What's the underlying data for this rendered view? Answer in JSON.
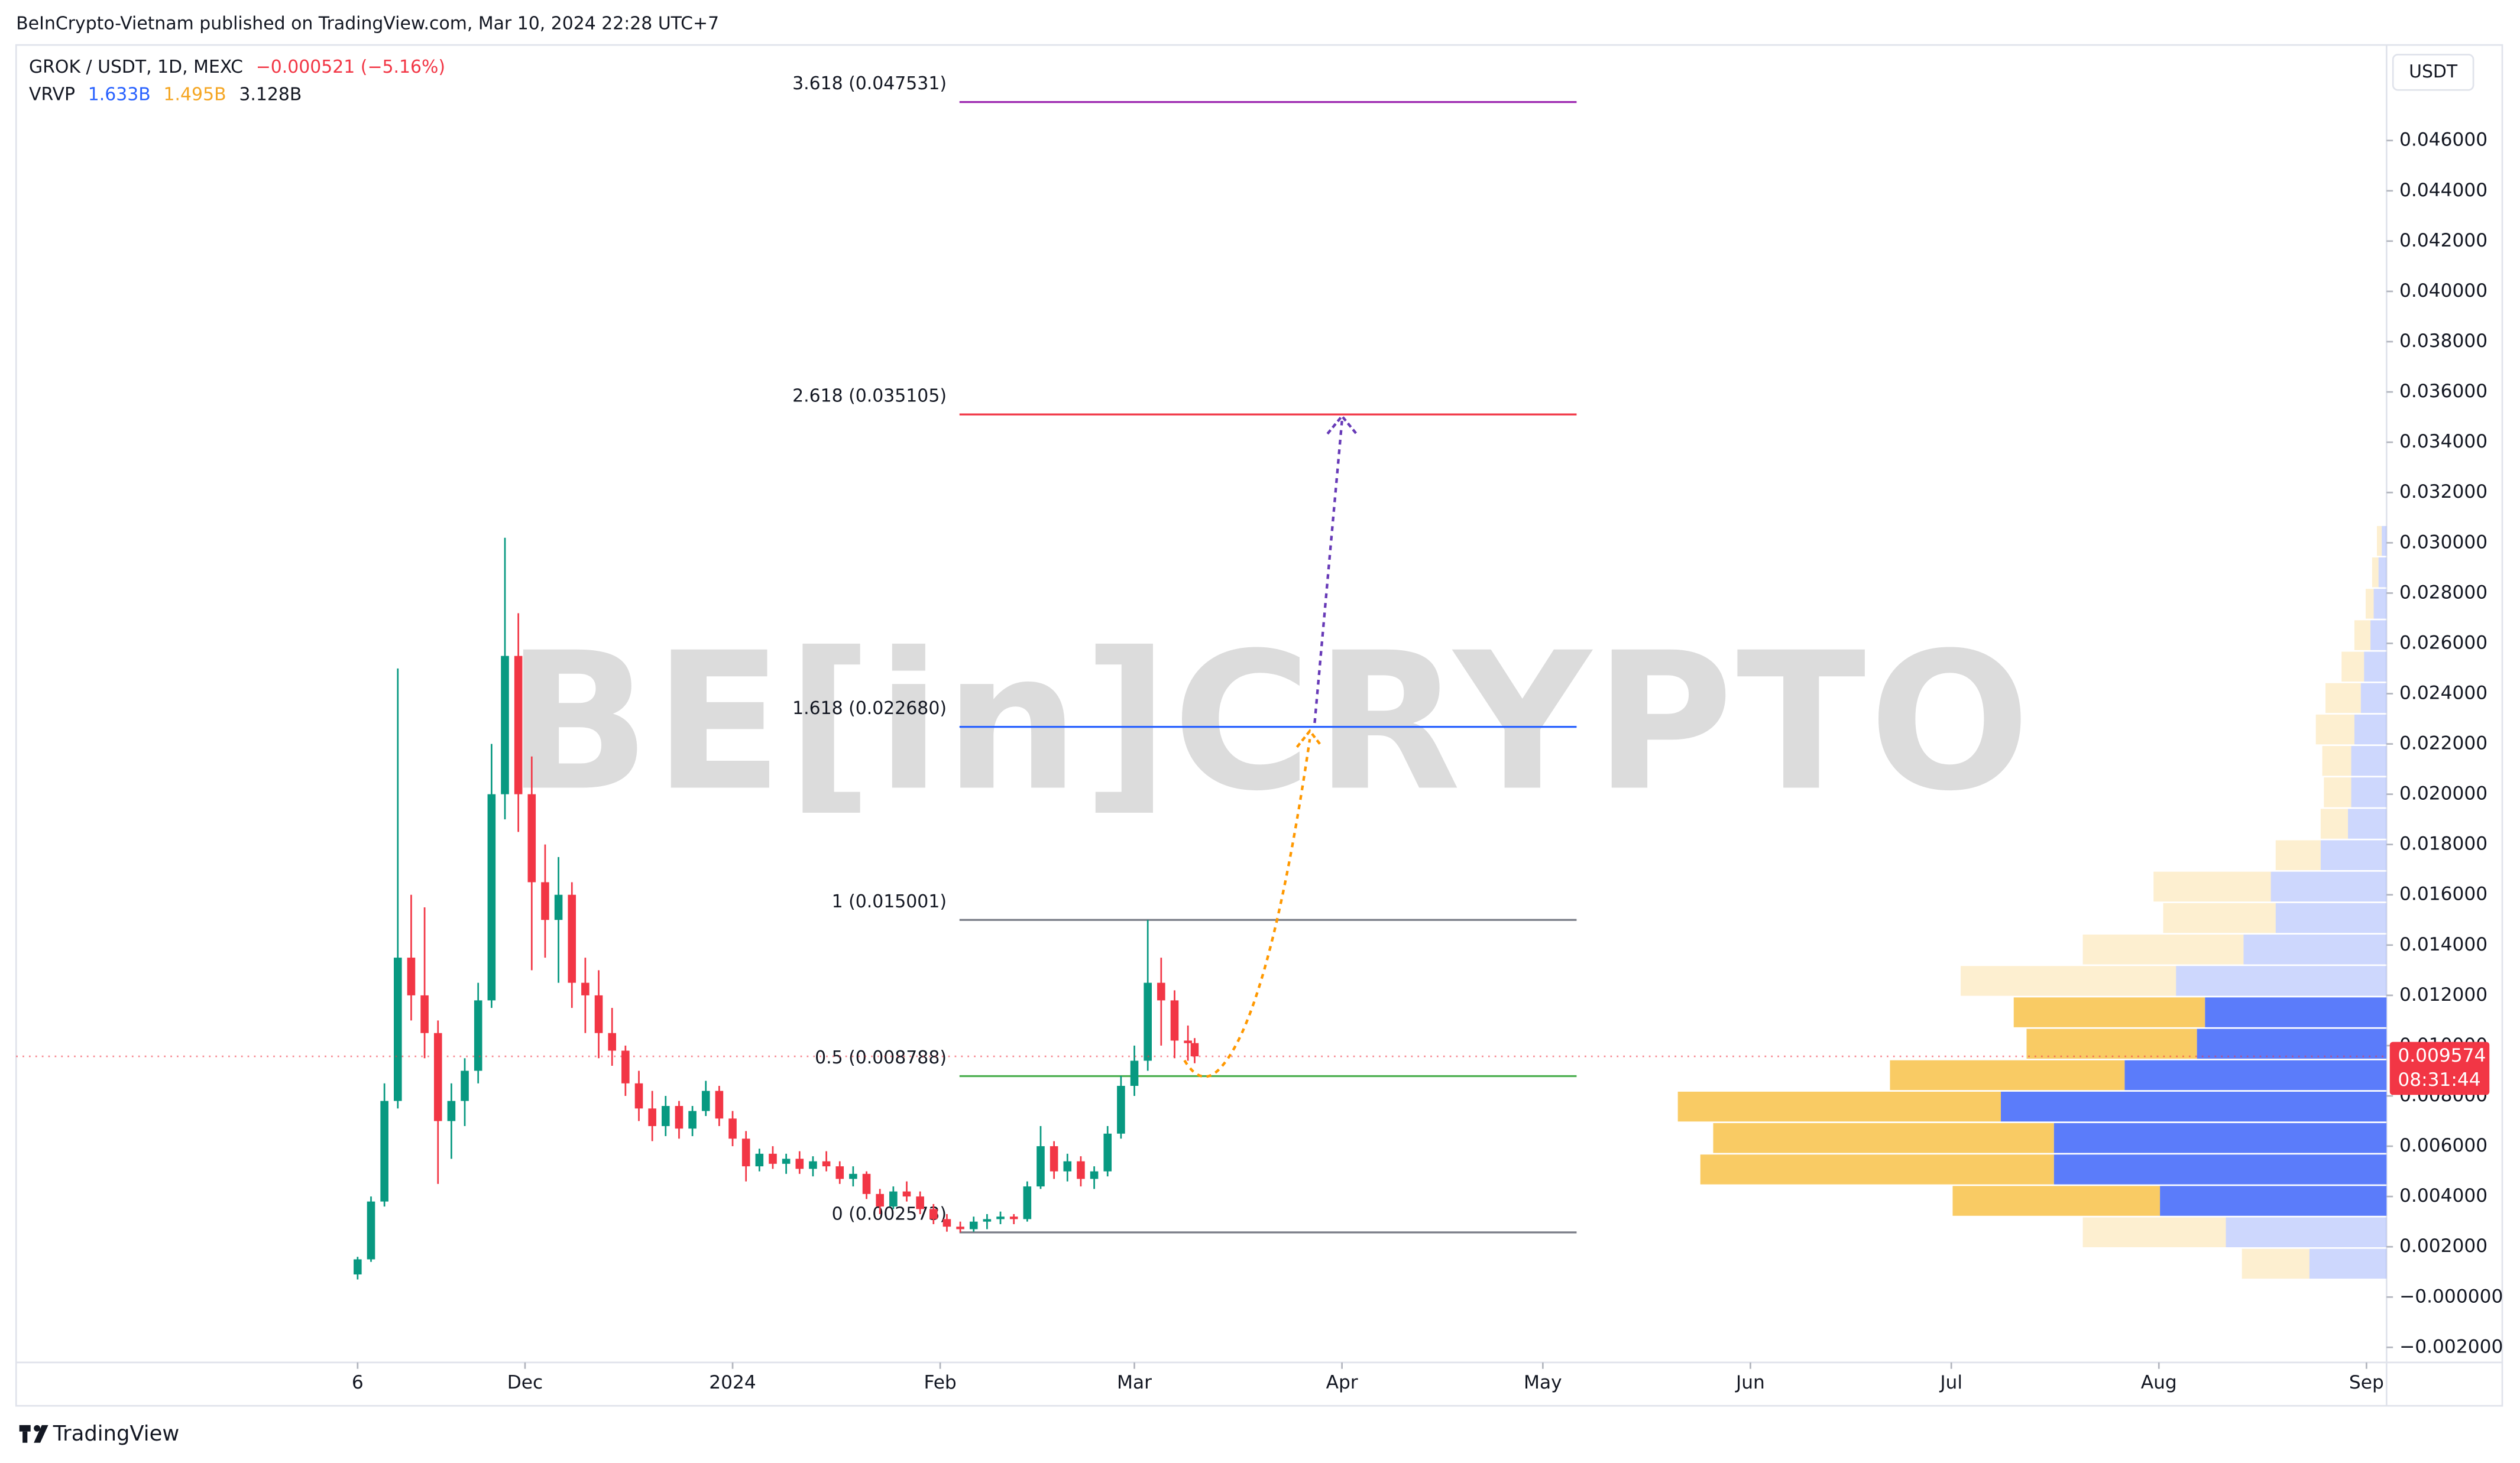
{
  "header": "BeInCrypto-Vietnam published on TradingView.com, Mar 10, 2024 22:28 UTC+7",
  "footer": "TradingView",
  "chart_data": {
    "type": "candlestick",
    "symbol": "GROK / USDT, 1D, MEXC",
    "change": "−0.000521 (−5.16%)",
    "currency": "USDT",
    "watermark": "BE[in]CRYPTO",
    "vrvp": {
      "name": "VRVP",
      "up": "1.633B",
      "down": "1.495B",
      "total": "3.128B"
    },
    "price_label": "0.009574",
    "countdown": "08:31:44",
    "up_color": "#089981",
    "down_color": "#f23645",
    "xlim": [
      "2023-09-16",
      "2024-09-04"
    ],
    "xticks": [
      {
        "value": "2023-11-06",
        "label": "6"
      },
      {
        "value": "2023-12-01",
        "label": "Dec"
      },
      {
        "value": "2024-01-01",
        "label": "2024"
      },
      {
        "value": "2024-02-01",
        "label": "Feb"
      },
      {
        "value": "2024-03-01",
        "label": "Mar"
      },
      {
        "value": "2024-04-01",
        "label": "Apr"
      },
      {
        "value": "2024-05-01",
        "label": "May"
      },
      {
        "value": "2024-06-01",
        "label": "Jun"
      },
      {
        "value": "2024-07-01",
        "label": "Jul"
      },
      {
        "value": "2024-08-01",
        "label": "Aug"
      },
      {
        "value": "2024-09-01",
        "label": "Sep"
      }
    ],
    "ylim": [
      -0.0026,
      0.0498
    ],
    "yticks": [
      {
        "value": -0.002,
        "label": "−0.002000"
      },
      {
        "value": 0,
        "label": "−0.000000"
      },
      {
        "value": 0.002,
        "label": "0.002000"
      },
      {
        "value": 0.004,
        "label": "0.004000"
      },
      {
        "value": 0.006,
        "label": "0.006000"
      },
      {
        "value": 0.008,
        "label": "0.008000"
      },
      {
        "value": 0.01,
        "label": "0.010000"
      },
      {
        "value": 0.012,
        "label": "0.012000"
      },
      {
        "value": 0.014,
        "label": "0.014000"
      },
      {
        "value": 0.016,
        "label": "0.016000"
      },
      {
        "value": 0.018,
        "label": "0.018000"
      },
      {
        "value": 0.02,
        "label": "0.020000"
      },
      {
        "value": 0.022,
        "label": "0.022000"
      },
      {
        "value": 0.024,
        "label": "0.024000"
      },
      {
        "value": 0.026,
        "label": "0.026000"
      },
      {
        "value": 0.028,
        "label": "0.028000"
      },
      {
        "value": 0.03,
        "label": "0.030000"
      },
      {
        "value": 0.032,
        "label": "0.032000"
      },
      {
        "value": 0.034,
        "label": "0.034000"
      },
      {
        "value": 0.036,
        "label": "0.036000"
      },
      {
        "value": 0.038,
        "label": "0.038000"
      },
      {
        "value": 0.04,
        "label": "0.040000"
      },
      {
        "value": 0.042,
        "label": "0.042000"
      },
      {
        "value": 0.044,
        "label": "0.044000"
      },
      {
        "value": 0.046,
        "label": "0.046000"
      }
    ],
    "x": [
      "2023-11-06",
      "2023-11-08",
      "2023-11-10",
      "2023-11-12",
      "2023-11-14",
      "2023-11-16",
      "2023-11-18",
      "2023-11-20",
      "2023-11-22",
      "2023-11-24",
      "2023-11-26",
      "2023-11-28",
      "2023-11-30",
      "2023-12-02",
      "2023-12-04",
      "2023-12-06",
      "2023-12-08",
      "2023-12-10",
      "2023-12-12",
      "2023-12-14",
      "2023-12-16",
      "2023-12-18",
      "2023-12-20",
      "2023-12-22",
      "2023-12-24",
      "2023-12-26",
      "2023-12-28",
      "2023-12-30",
      "2024-01-01",
      "2024-01-03",
      "2024-01-05",
      "2024-01-07",
      "2024-01-09",
      "2024-01-11",
      "2024-01-13",
      "2024-01-15",
      "2024-01-17",
      "2024-01-19",
      "2024-01-21",
      "2024-01-23",
      "2024-01-25",
      "2024-01-27",
      "2024-01-29",
      "2024-01-31",
      "2024-02-02",
      "2024-02-04",
      "2024-02-06",
      "2024-02-08",
      "2024-02-10",
      "2024-02-12",
      "2024-02-14",
      "2024-02-16",
      "2024-02-18",
      "2024-02-20",
      "2024-02-22",
      "2024-02-24",
      "2024-02-26",
      "2024-02-28",
      "2024-03-01",
      "2024-03-03",
      "2024-03-05",
      "2024-03-07",
      "2024-03-09",
      "2024-03-10"
    ],
    "open": [
      0.0009,
      0.0015,
      0.0038,
      0.0078,
      0.0135,
      0.012,
      0.0105,
      0.007,
      0.0078,
      0.009,
      0.0118,
      0.02,
      0.0255,
      0.02,
      0.0165,
      0.015,
      0.016,
      0.0125,
      0.012,
      0.0105,
      0.0098,
      0.0085,
      0.0075,
      0.0068,
      0.0076,
      0.0067,
      0.0074,
      0.0082,
      0.0071,
      0.0063,
      0.0052,
      0.0057,
      0.0053,
      0.0055,
      0.0051,
      0.0054,
      0.0052,
      0.0047,
      0.0049,
      0.0041,
      0.0036,
      0.0042,
      0.004,
      0.0035,
      0.0031,
      0.0028,
      0.0027,
      0.003,
      0.0031,
      0.0032,
      0.0031,
      0.0044,
      0.006,
      0.005,
      0.0054,
      0.0047,
      0.005,
      0.0065,
      0.0084,
      0.0094,
      0.0125,
      0.0118,
      0.0102,
      0.0101
    ],
    "high": [
      0.0016,
      0.004,
      0.0085,
      0.025,
      0.016,
      0.0155,
      0.011,
      0.0085,
      0.0095,
      0.0125,
      0.022,
      0.0302,
      0.0272,
      0.0215,
      0.018,
      0.0175,
      0.0165,
      0.0135,
      0.013,
      0.0115,
      0.01,
      0.009,
      0.0082,
      0.008,
      0.0078,
      0.0076,
      0.0086,
      0.0084,
      0.0074,
      0.0066,
      0.0059,
      0.006,
      0.0057,
      0.0058,
      0.0056,
      0.0058,
      0.0054,
      0.0052,
      0.005,
      0.0043,
      0.0044,
      0.0046,
      0.0042,
      0.0037,
      0.0033,
      0.003,
      0.0032,
      0.0033,
      0.0034,
      0.0033,
      0.0046,
      0.0068,
      0.0062,
      0.0057,
      0.0056,
      0.0052,
      0.0068,
      0.0088,
      0.01,
      0.015,
      0.0135,
      0.0122,
      0.0108,
      0.0103
    ],
    "low": [
      0.0007,
      0.0014,
      0.0036,
      0.0075,
      0.011,
      0.0095,
      0.0045,
      0.0055,
      0.0068,
      0.0085,
      0.0115,
      0.019,
      0.0185,
      0.013,
      0.0135,
      0.0125,
      0.0115,
      0.0105,
      0.0095,
      0.0092,
      0.008,
      0.007,
      0.0062,
      0.0064,
      0.0063,
      0.0064,
      0.0072,
      0.0068,
      0.006,
      0.0046,
      0.005,
      0.0051,
      0.0049,
      0.0049,
      0.0048,
      0.005,
      0.0045,
      0.0044,
      0.0039,
      0.0033,
      0.0035,
      0.0038,
      0.0033,
      0.0029,
      0.0026,
      0.002573,
      0.0026,
      0.0027,
      0.0029,
      0.0029,
      0.003,
      0.0043,
      0.0047,
      0.0046,
      0.0044,
      0.0043,
      0.0048,
      0.0063,
      0.008,
      0.009,
      0.01,
      0.0095,
      0.0094,
      0.0093
    ],
    "close": [
      0.0015,
      0.0038,
      0.0078,
      0.0135,
      0.012,
      0.0105,
      0.007,
      0.0078,
      0.009,
      0.0118,
      0.02,
      0.0255,
      0.02,
      0.0165,
      0.015,
      0.016,
      0.0125,
      0.012,
      0.0105,
      0.0098,
      0.0085,
      0.0075,
      0.0068,
      0.0076,
      0.0067,
      0.0074,
      0.0082,
      0.0071,
      0.0063,
      0.0052,
      0.0057,
      0.0053,
      0.0055,
      0.0051,
      0.0054,
      0.0052,
      0.0047,
      0.0049,
      0.0041,
      0.0036,
      0.0042,
      0.004,
      0.0035,
      0.0031,
      0.0028,
      0.0027,
      0.003,
      0.0031,
      0.0032,
      0.0031,
      0.0044,
      0.006,
      0.005,
      0.0054,
      0.0047,
      0.005,
      0.0065,
      0.0084,
      0.0094,
      0.0125,
      0.0118,
      0.0102,
      0.0101,
      0.009574
    ],
    "fib": [
      {
        "label": "3.618 (0.047531)",
        "price": 0.047531,
        "color": "#9c27b0"
      },
      {
        "label": "2.618 (0.035105)",
        "price": 0.035105,
        "color": "#f23645"
      },
      {
        "label": "1.618 (0.022680)",
        "price": 0.02268,
        "color": "#2962ff"
      },
      {
        "label": "1 (0.015001)",
        "price": 0.015001,
        "color": "#787b86"
      },
      {
        "label": "0.5 (0.008788)",
        "price": 0.008788,
        "color": "#4caf50"
      },
      {
        "label": "0 (0.002573)",
        "price": 0.002573,
        "color": "#787b86"
      }
    ],
    "volume_profile": {
      "bins": [
        0.0007,
        0.00195,
        0.0032,
        0.00445,
        0.0057,
        0.00695,
        0.0082,
        0.00945,
        0.0107,
        0.01195,
        0.0132,
        0.01445,
        0.0157,
        0.01695,
        0.0182,
        0.01945,
        0.0207,
        0.02195,
        0.0232,
        0.02445,
        0.0257,
        0.02695,
        0.0282,
        0.02945,
        0.0307
      ],
      "up": [
        48,
        100,
        141,
        207,
        207,
        240,
        163,
        118,
        113,
        131,
        89,
        69,
        72,
        41,
        24,
        22,
        22,
        20,
        16,
        14,
        10,
        8,
        5,
        3
      ],
      "down": [
        42,
        89,
        129,
        220,
        212,
        201,
        146,
        106,
        119,
        134,
        100,
        70,
        73,
        28,
        17,
        17,
        18,
        24,
        22,
        14,
        10,
        5,
        4,
        3
      ],
      "xlim": [
        0,
        1475
      ],
      "up_color": "#5b7cfa",
      "down_color": "#f9cb64",
      "value_area_rows": [
        2,
        8
      ]
    }
  }
}
